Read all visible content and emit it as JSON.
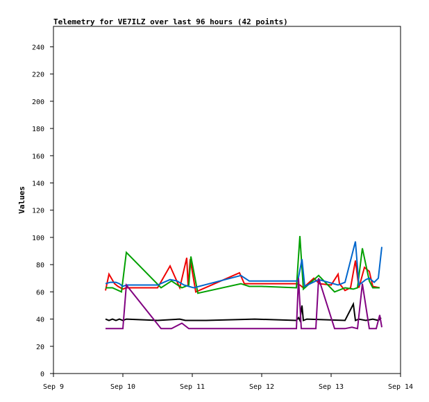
{
  "chart_data": {
    "type": "line",
    "title": "Telemetry for VE7ILZ over last 96 hours (42 points)",
    "xlabel": "",
    "ylabel": "Values",
    "x_ticks": [
      "Sep 9",
      "Sep 10",
      "Sep 11",
      "Sep 12",
      "Sep 13",
      "Sep 14"
    ],
    "xlim": [
      9.0,
      14.0
    ],
    "y_ticks": [
      0,
      20,
      40,
      60,
      80,
      100,
      120,
      140,
      160,
      180,
      200,
      220,
      240
    ],
    "ylim": [
      0,
      255
    ],
    "grid": false,
    "legend": "none",
    "colors": {
      "red": "#ee0000",
      "green": "#00a000",
      "blue": "#0066cc",
      "black": "#000000",
      "purple": "#800080"
    },
    "series": [
      {
        "color": "#ee0000",
        "x": [
          9.75,
          9.8,
          9.88,
          9.93,
          10.0,
          10.05,
          10.5,
          10.68,
          10.82,
          10.92,
          10.94,
          10.97,
          11.05,
          11.68,
          11.75,
          12.5,
          12.55,
          12.6,
          12.75,
          12.83,
          13.0,
          13.1,
          13.12,
          13.2,
          13.28,
          13.35,
          13.4,
          13.48,
          13.55,
          13.6,
          13.7
        ],
        "y": [
          61,
          73,
          66,
          64,
          62,
          63,
          63,
          79,
          63,
          85,
          64,
          84,
          60,
          74,
          66,
          66,
          65,
          63,
          70,
          66,
          65,
          73,
          66,
          61,
          63,
          83,
          63,
          78,
          75,
          64,
          63
        ]
      },
      {
        "color": "#00a000",
        "x": [
          9.75,
          9.85,
          9.98,
          10.05,
          10.55,
          10.7,
          10.85,
          10.95,
          10.98,
          11.08,
          11.7,
          11.82,
          12.0,
          12.5,
          12.55,
          12.6,
          12.82,
          13.05,
          13.2,
          13.32,
          13.38,
          13.45,
          13.55,
          13.6,
          13.7
        ],
        "y": [
          63,
          63,
          60,
          89,
          63,
          68,
          63,
          65,
          86,
          59,
          66,
          64,
          64,
          63,
          101,
          62,
          72,
          60,
          63,
          62,
          63,
          92,
          68,
          63,
          63
        ]
      },
      {
        "color": "#0066cc",
        "x": [
          9.75,
          9.82,
          9.9,
          9.95,
          10.0,
          10.05,
          10.5,
          10.68,
          10.78,
          10.88,
          10.95,
          11.02,
          11.7,
          11.82,
          12.0,
          12.52,
          12.58,
          12.62,
          12.82,
          13.1,
          13.2,
          13.35,
          13.4,
          13.5,
          13.55,
          13.62,
          13.68,
          13.73
        ],
        "y": [
          66,
          67,
          67,
          66,
          64,
          65,
          65,
          69,
          68,
          65,
          64,
          63,
          72,
          68,
          68,
          68,
          84,
          64,
          69,
          65,
          67,
          97,
          65,
          69,
          70,
          67,
          70,
          93
        ]
      },
      {
        "color": "#000000",
        "x": [
          9.75,
          9.8,
          9.85,
          9.9,
          9.95,
          10.0,
          10.05,
          10.5,
          10.82,
          10.9,
          11.2,
          11.9,
          12.5,
          12.53,
          12.55,
          12.58,
          12.6,
          12.65,
          13.2,
          13.32,
          13.35,
          13.4,
          13.5,
          13.6,
          13.68,
          13.72
        ],
        "y": [
          40,
          39,
          40,
          39,
          40,
          39,
          40,
          39,
          40,
          39,
          39,
          40,
          39,
          41,
          39,
          50,
          39,
          40,
          39,
          51,
          39,
          40,
          39,
          40,
          39,
          41
        ]
      },
      {
        "color": "#800080",
        "x": [
          9.75,
          10.0,
          10.05,
          10.55,
          10.7,
          10.85,
          10.95,
          12.5,
          12.53,
          12.57,
          12.6,
          12.78,
          12.82,
          13.05,
          13.2,
          13.3,
          13.38,
          13.45,
          13.55,
          13.65,
          13.7,
          13.73
        ],
        "y": [
          33,
          33,
          65,
          33,
          33,
          37,
          33,
          33,
          70,
          33,
          33,
          33,
          70,
          33,
          33,
          34,
          33,
          66,
          33,
          33,
          43,
          34
        ]
      }
    ]
  }
}
